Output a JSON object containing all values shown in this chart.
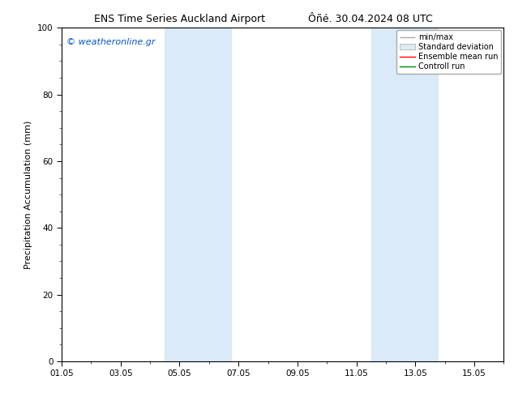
{
  "title_left": "ENS Time Series Auckland Airport",
  "title_right": "Ôñé. 30.04.2024 08 UTC",
  "ylabel": "Precipitation Accumulation (mm)",
  "watermark": "© weatheronline.gr",
  "watermark_color": "#0055cc",
  "ylim": [
    0,
    100
  ],
  "yticks": [
    0,
    20,
    40,
    60,
    80,
    100
  ],
  "xtick_labels": [
    "01.05",
    "03.05",
    "05.05",
    "07.05",
    "09.05",
    "11.05",
    "13.05",
    "15.05"
  ],
  "xtick_positions_days": [
    0,
    2,
    4,
    6,
    8,
    10,
    12,
    14
  ],
  "total_days": 15,
  "shaded_bands": [
    {
      "xstart_days": 3.5,
      "xend_days": 5.75
    },
    {
      "xstart_days": 10.5,
      "xend_days": 12.75
    }
  ],
  "band_color": "#daeaf8",
  "background_color": "#ffffff",
  "legend_labels": [
    "min/max",
    "Standard deviation",
    "Ensemble mean run",
    "Controll run"
  ],
  "legend_colors_line": [
    "#aaaaaa",
    "#cccccc",
    "#ff0000",
    "#008800"
  ],
  "title_fontsize": 9,
  "axis_label_fontsize": 8,
  "tick_fontsize": 7.5,
  "watermark_fontsize": 8,
  "legend_fontsize": 7
}
